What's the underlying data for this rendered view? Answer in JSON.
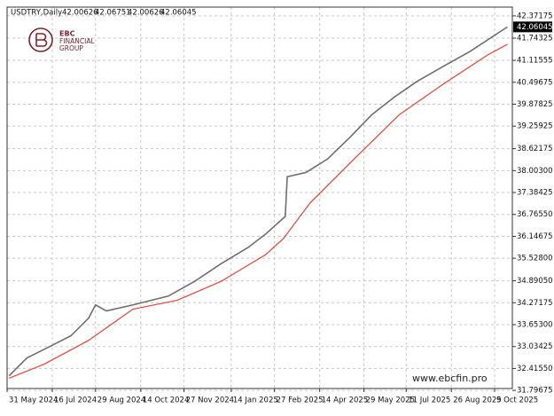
{
  "chart_data": {
    "type": "line",
    "title": "USDTRY,Daily",
    "ohlc": [
      42.00626,
      42.06751,
      42.00626,
      42.06045
    ],
    "last_price": 42.06045,
    "brand": {
      "name": "EBC",
      "line1": "FINANCIAL",
      "line2": "GROUP"
    },
    "watermark": "www.ebcfin.pro",
    "grid": true,
    "xlim": [
      "2024-05-31",
      "2025-10-27"
    ],
    "ylim": [
      31.85,
      42.62
    ],
    "xticks": [
      {
        "value": "2024-05-31",
        "label": "31 May 2024"
      },
      {
        "value": "2024-07-16",
        "label": "16 Jul 2024"
      },
      {
        "value": "2024-08-29",
        "label": "29 Aug 2024"
      },
      {
        "value": "2024-10-14",
        "label": "14 Oct 2024"
      },
      {
        "value": "2024-11-27",
        "label": "27 Nov 2024"
      },
      {
        "value": "2025-01-14",
        "label": "14 Jan 2025"
      },
      {
        "value": "2025-02-27",
        "label": "27 Feb 2025"
      },
      {
        "value": "2025-04-14",
        "label": "14 Apr 2025"
      },
      {
        "value": "2025-05-29",
        "label": "29 May 2025"
      },
      {
        "value": "2025-07-11",
        "label": "11 Jul 2025"
      },
      {
        "value": "2025-08-26",
        "label": "26 Aug 2025"
      },
      {
        "value": "2025-10-09",
        "label": "9 Oct 2025"
      }
    ],
    "yticks": [
      42.37175,
      41.74325,
      41.11555,
      40.49675,
      39.87825,
      39.25925,
      38.62175,
      {
        "value": 38.003,
        "label": "38.00300"
      },
      37.38425,
      {
        "value": 36.7655,
        "label": "36.76550"
      },
      36.14675,
      {
        "value": 35.528,
        "label": "35.52800"
      },
      {
        "value": 34.8905,
        "label": "34.89050"
      },
      34.27175,
      {
        "value": 33.653,
        "label": "33.65300"
      },
      33.03425,
      {
        "value": 32.4155,
        "label": "32.41550"
      },
      31.79675
    ],
    "series": [
      {
        "color": "#6e6e6e",
        "x": [
          "2024-06-02",
          "2024-06-20",
          "2024-07-08",
          "2024-08-04",
          "2024-08-22",
          "2024-08-29",
          "2024-09-09",
          "2024-10-06",
          "2024-11-11",
          "2024-12-08",
          "2025-01-04",
          "2025-01-31",
          "2025-02-18",
          "2025-03-10",
          "2025-03-12",
          "2025-03-31",
          "2025-04-22",
          "2025-05-15",
          "2025-06-06",
          "2025-06-29",
          "2025-07-22",
          "2025-08-18",
          "2025-09-14",
          "2025-10-06",
          "2025-10-22"
        ],
        "values": [
          32.21,
          32.71,
          32.96,
          33.34,
          33.84,
          34.21,
          34.04,
          34.21,
          34.46,
          34.88,
          35.38,
          35.83,
          36.21,
          36.71,
          37.83,
          37.95,
          38.33,
          38.95,
          39.58,
          40.08,
          40.52,
          40.95,
          41.37,
          41.77,
          42.06
        ]
      },
      {
        "color": "#e0453a",
        "x": [
          "2024-06-02",
          "2024-07-08",
          "2024-08-22",
          "2024-10-06",
          "2024-11-20",
          "2025-01-04",
          "2025-02-18",
          "2025-03-08",
          "2025-04-04",
          "2025-05-19",
          "2025-07-04",
          "2025-08-18",
          "2025-10-02",
          "2025-10-22"
        ],
        "values": [
          32.14,
          32.54,
          33.21,
          34.09,
          34.34,
          34.88,
          35.63,
          36.08,
          37.08,
          38.33,
          39.58,
          40.45,
          41.27,
          41.57
        ]
      }
    ]
  }
}
